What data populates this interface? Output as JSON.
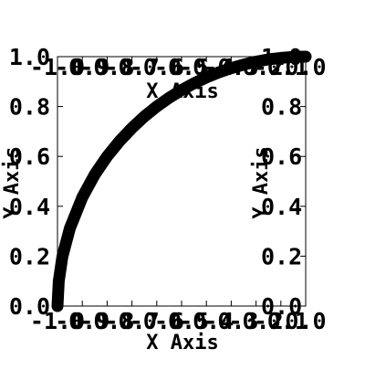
{
  "chart_data": {
    "type": "line",
    "title": "",
    "xlabel": "X Axis",
    "ylabel": "Y Axis",
    "top_xlabel": "X Axis",
    "right_ylabel": "Y Axis",
    "xlim": [
      -1.0,
      0.0
    ],
    "ylim": [
      0.0,
      1.0
    ],
    "xticks": [
      "-1.0",
      "-0.9",
      "-0.8",
      "-0.7",
      "-0.6",
      "-0.5",
      "-0.4",
      "-0.3",
      "-0.2",
      "-0.1",
      "0.0"
    ],
    "xtick_values": [
      -1.0,
      -0.9,
      -0.8,
      -0.7,
      -0.6,
      -0.5,
      -0.4,
      -0.3,
      -0.2,
      -0.1,
      0.0
    ],
    "yticks": [
      "0.0",
      "0.2",
      "0.4",
      "0.6",
      "0.8",
      "1.0"
    ],
    "ytick_values": [
      0.0,
      0.2,
      0.4,
      0.6,
      0.8,
      1.0
    ],
    "grid": false,
    "legend": "none",
    "line_color": "#000000",
    "series": [
      {
        "x": [
          -1.0,
          -0.995,
          -0.98,
          -0.95,
          -0.9,
          -0.85,
          -0.8,
          -0.75,
          -0.7,
          -0.65,
          -0.6,
          -0.55,
          -0.5,
          -0.45,
          -0.4,
          -0.35,
          -0.3,
          -0.25,
          -0.2,
          -0.15,
          -0.1,
          -0.05,
          0.0
        ],
        "y": [
          0.0,
          0.1,
          0.199,
          0.312,
          0.436,
          0.527,
          0.6,
          0.661,
          0.714,
          0.76,
          0.8,
          0.835,
          0.866,
          0.893,
          0.917,
          0.937,
          0.954,
          0.968,
          0.98,
          0.989,
          0.995,
          0.999,
          1.0
        ]
      }
    ]
  }
}
